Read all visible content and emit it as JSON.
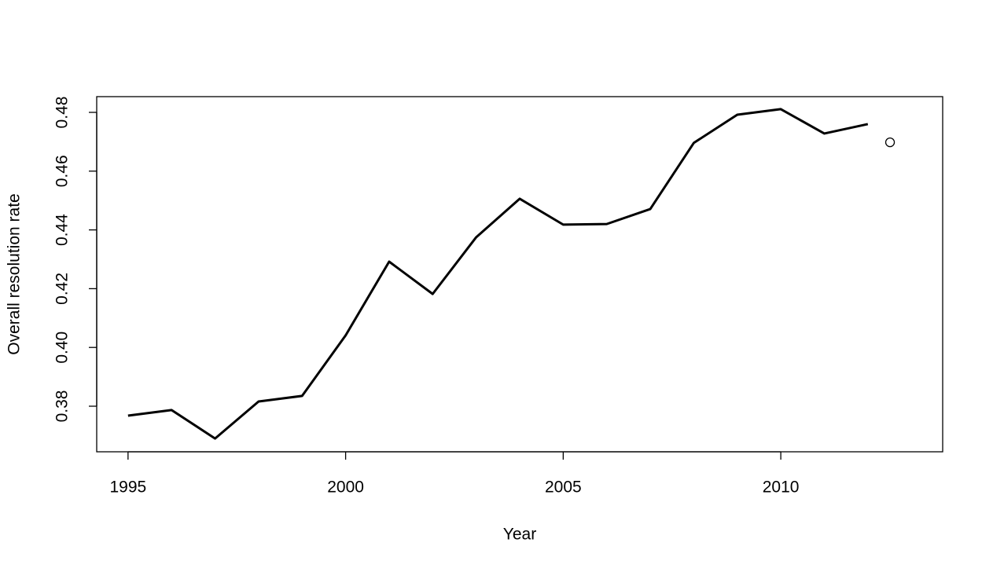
{
  "chart_data": {
    "type": "line",
    "x_label": "Year",
    "y_label": "Overall resolution rate",
    "series": [
      {
        "style": "line",
        "color": "#000000",
        "x": [
          1995,
          1996,
          1997,
          1998,
          1999,
          2000,
          2001,
          2002,
          2003,
          2004,
          2005,
          2006,
          2007,
          2008,
          2009,
          2010,
          2011,
          2012
        ],
        "values": [
          0.3768,
          0.3787,
          0.369,
          0.3816,
          0.3835,
          0.4041,
          0.4292,
          0.4182,
          0.4375,
          0.4506,
          0.4418,
          0.442,
          0.4471,
          0.4696,
          0.4792,
          0.4811,
          0.4728,
          0.476
        ]
      },
      {
        "style": "point",
        "color": "#000000",
        "x": [
          2012.51
        ],
        "values": [
          0.4698
        ]
      }
    ],
    "xlim": [
      1994.28,
      2013.72
    ],
    "ylim": [
      0.36449,
      0.48535
    ],
    "xticks": [
      1995,
      2000,
      2005,
      2010
    ],
    "yticks": [
      0.38,
      {
        "value": 0.4,
        "label": "0.40"
      },
      0.42,
      0.44,
      0.46,
      0.48
    ],
    "grid": false
  }
}
